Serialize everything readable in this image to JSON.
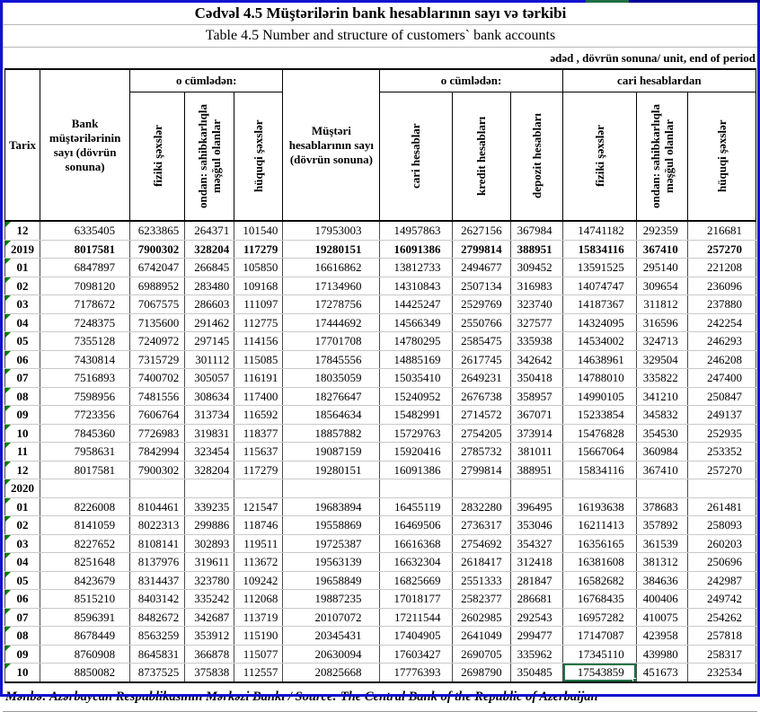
{
  "page": {
    "title_az": "Cədvəl 4.5 Müştərilərin bank hesablarının sayı və tərkibi",
    "title_en": "Table 4.5 Number and structure of customers` bank accounts",
    "unit_note": "ədəd , dövrün sonuna/ unit, end of period",
    "source": "Mənbə: Azərbaycan Respublikasının Mərkəzi Bankı / Source: The Central Bank of the Republic of Azerbaijan"
  },
  "table": {
    "corner_label": "Tarix",
    "col_bank_customers": "Bank müştərilərinin sayı (dövrün sonuna)",
    "col_customer_accounts": "Müştəri hesablarının sayı (dövrün sonuna)",
    "group1_label": "o cümlədən:",
    "group2_label": "o cümlədən:",
    "group3_label": "cari hesablardan",
    "rotated_columns": [
      "fiziki şəxslər",
      "ondan: sahibkarlıqla məşğul olanlar",
      "hüquqi şəxslər",
      "cari hesablar",
      "kredit hesabları",
      "depozit hesabları",
      "fiziki şəxslər",
      "ondan: sahibkarlıqla məşğul olanlar",
      "hüquqi şəxslər"
    ],
    "rows": [
      {
        "date": "12",
        "bold": false,
        "values": [
          6335405,
          6233865,
          264371,
          101540,
          17953003,
          14957863,
          2627156,
          367984,
          14741182,
          292359,
          216681
        ]
      },
      {
        "date": "2019",
        "bold": true,
        "values": [
          8017581,
          7900302,
          328204,
          117279,
          19280151,
          16091386,
          2799814,
          388951,
          15834116,
          367410,
          257270
        ]
      },
      {
        "date": "01",
        "bold": false,
        "values": [
          6847897,
          6742047,
          266845,
          105850,
          16616862,
          13812733,
          2494677,
          309452,
          13591525,
          295140,
          221208
        ]
      },
      {
        "date": "02",
        "bold": false,
        "values": [
          7098120,
          6988952,
          283480,
          109168,
          17134960,
          14310843,
          2507134,
          316983,
          14074747,
          309654,
          236096
        ]
      },
      {
        "date": "03",
        "bold": false,
        "values": [
          7178672,
          7067575,
          286603,
          111097,
          17278756,
          14425247,
          2529769,
          323740,
          14187367,
          311812,
          237880
        ]
      },
      {
        "date": "04",
        "bold": false,
        "values": [
          7248375,
          7135600,
          291462,
          112775,
          17444692,
          14566349,
          2550766,
          327577,
          14324095,
          316596,
          242254
        ]
      },
      {
        "date": "05",
        "bold": false,
        "values": [
          7355128,
          7240972,
          297145,
          114156,
          17701708,
          14780295,
          2585475,
          335938,
          14534002,
          324713,
          246293
        ]
      },
      {
        "date": "06",
        "bold": false,
        "values": [
          7430814,
          7315729,
          301112,
          115085,
          17845556,
          14885169,
          2617745,
          342642,
          14638961,
          329504,
          246208
        ]
      },
      {
        "date": "07",
        "bold": false,
        "values": [
          7516893,
          7400702,
          305057,
          116191,
          18035059,
          15035410,
          2649231,
          350418,
          14788010,
          335822,
          247400
        ]
      },
      {
        "date": "08",
        "bold": false,
        "values": [
          7598956,
          7481556,
          308634,
          117400,
          18276647,
          15240952,
          2676738,
          358957,
          14990105,
          341210,
          250847
        ]
      },
      {
        "date": "09",
        "bold": false,
        "values": [
          7723356,
          7606764,
          313734,
          116592,
          18564634,
          15482991,
          2714572,
          367071,
          15233854,
          345832,
          249137
        ]
      },
      {
        "date": "10",
        "bold": false,
        "values": [
          7845360,
          7726983,
          319831,
          118377,
          18857882,
          15729763,
          2754205,
          373914,
          15476828,
          354530,
          252935
        ]
      },
      {
        "date": "11",
        "bold": false,
        "values": [
          7958631,
          7842994,
          323454,
          115637,
          19087159,
          15920416,
          2785732,
          381011,
          15667064,
          360984,
          253352
        ]
      },
      {
        "date": "12",
        "bold": false,
        "values": [
          8017581,
          7900302,
          328204,
          117279,
          19280151,
          16091386,
          2799814,
          388951,
          15834116,
          367410,
          257270
        ]
      },
      {
        "date": "2020",
        "bold": true,
        "values": []
      },
      {
        "date": "01",
        "bold": false,
        "values": [
          8226008,
          8104461,
          339235,
          121547,
          19683894,
          16455119,
          2832280,
          396495,
          16193638,
          378683,
          261481
        ]
      },
      {
        "date": "02",
        "bold": false,
        "values": [
          8141059,
          8022313,
          299886,
          118746,
          19558869,
          16469506,
          2736317,
          353046,
          16211413,
          357892,
          258093
        ]
      },
      {
        "date": "03",
        "bold": false,
        "values": [
          8227652,
          8108141,
          302893,
          119511,
          19725387,
          16616368,
          2754692,
          354327,
          16356165,
          361539,
          260203
        ]
      },
      {
        "date": "04",
        "bold": false,
        "values": [
          8251648,
          8137976,
          319611,
          113672,
          19563139,
          16632304,
          2618417,
          312418,
          16381608,
          381312,
          250696
        ]
      },
      {
        "date": "05",
        "bold": false,
        "values": [
          8423679,
          8314437,
          323780,
          109242,
          19658849,
          16825669,
          2551333,
          281847,
          16582682,
          384636,
          242987
        ]
      },
      {
        "date": "06",
        "bold": false,
        "values": [
          8515210,
          8403142,
          335242,
          112068,
          19887235,
          17018177,
          2582377,
          286681,
          16768435,
          400406,
          249742
        ]
      },
      {
        "date": "07",
        "bold": false,
        "values": [
          8596391,
          8482672,
          342687,
          113719,
          20107072,
          17211544,
          2602985,
          292543,
          16957282,
          410075,
          254262
        ]
      },
      {
        "date": "08",
        "bold": false,
        "values": [
          8678449,
          8563259,
          353912,
          115190,
          20345431,
          17404905,
          2641049,
          299477,
          17147087,
          423958,
          257818
        ]
      },
      {
        "date": "09",
        "bold": false,
        "values": [
          8760908,
          8645831,
          366878,
          115077,
          20630094,
          17603427,
          2690705,
          335962,
          17345110,
          439980,
          258317
        ]
      },
      {
        "date": "10",
        "bold": false,
        "values": [
          8850082,
          8737525,
          375838,
          112557,
          20825668,
          17776393,
          2698790,
          350485,
          17543859,
          451673,
          232534
        ]
      }
    ],
    "selected_cell": {
      "row": 24,
      "col": 8,
      "value": 17543859
    }
  },
  "colors": {
    "frame_blue": "#1212cf",
    "frame_navy": "#000099",
    "frame_green": "#1d6f42",
    "selection_green": "#217346",
    "triangle_green": "#008000"
  }
}
